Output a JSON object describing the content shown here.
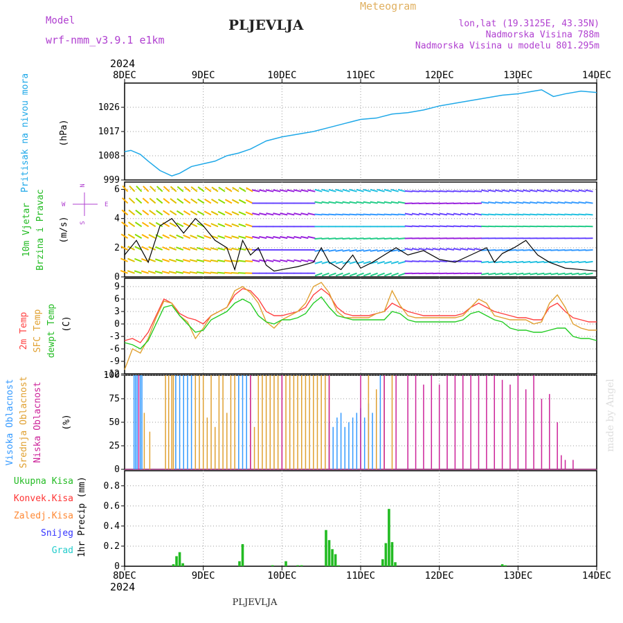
{
  "header": {
    "model_label": "Model",
    "model_name": "wrf-nmm_v3.9.1  e1km",
    "title": "PLJEVLJA",
    "meteogram": "Meteogram",
    "lonlat": "lon,lat (19.3125E, 43.35N)",
    "elevation": "Nadmorska Visina 788m",
    "model_elevation": "Nadmorska Visina u modelu 801.295m",
    "year_top": "2024",
    "year_bottom": "2024",
    "footer": "PLJEVLJA",
    "credit": "made by Angel"
  },
  "colors": {
    "pressure": "#1ea8e8",
    "temp2m": "#ff4040",
    "sfc_temp": "#e0a030",
    "dewpoint": "#22cc22",
    "high_cloud": "#3399ff",
    "mid_cloud": "#e0a030",
    "low_cloud": "#cc2299",
    "total_precip": "#22bb22",
    "conv_precip": "#ff3333",
    "frz_precip": "#ff8833",
    "snow": "#3333ff",
    "graupel": "#22cccc",
    "axis_label_purple": "#b040d0"
  },
  "chart_data": [
    {
      "type": "line",
      "name": "sea-level-pressure",
      "ylabel_main": "Pritisak na nivou mora",
      "ylabel_unit": "(hPa)",
      "x_ticks": [
        "8DEC",
        "9DEC",
        "10DEC",
        "11DEC",
        "12DEC",
        "13DEC",
        "14DEC"
      ],
      "ylim": [
        999,
        1035
      ],
      "yticks": [
        999,
        1008,
        1017,
        1026
      ],
      "x": [
        0,
        0.08,
        0.2,
        0.3,
        0.45,
        0.6,
        0.7,
        0.85,
        1.0,
        1.15,
        1.3,
        1.45,
        1.6,
        1.8,
        2.0,
        2.2,
        2.4,
        2.6,
        2.8,
        3.0,
        3.2,
        3.4,
        3.6,
        3.8,
        4.0,
        4.2,
        4.4,
        4.6,
        4.8,
        5.0,
        5.2,
        5.3,
        5.45,
        5.6,
        5.8,
        6.0
      ],
      "y": [
        1009.5,
        1010.0,
        1008.5,
        1006.0,
        1002.5,
        1000.5,
        1001.5,
        1004.0,
        1005.0,
        1006.0,
        1008.0,
        1009.0,
        1010.5,
        1013.5,
        1015.0,
        1016.0,
        1017.0,
        1018.5,
        1020.0,
        1021.5,
        1022.0,
        1023.5,
        1024.0,
        1025.0,
        1026.5,
        1027.5,
        1028.5,
        1029.5,
        1030.5,
        1031.0,
        1032.0,
        1032.5,
        1030.0,
        1031.0,
        1032.0,
        1031.5
      ]
    },
    {
      "type": "line",
      "name": "wind",
      "ylabel_main": "10m Vjetar",
      "ylabel_sub": "Brzina i Pravac",
      "ylabel_unit": "(m/s)",
      "compass": [
        "N",
        "W",
        "E",
        "S"
      ],
      "ylim": [
        0,
        6.5
      ],
      "yticks": [
        0,
        2,
        4,
        6
      ],
      "series": [
        {
          "name": "speed",
          "x": [
            0,
            0.15,
            0.3,
            0.45,
            0.6,
            0.75,
            0.9,
            1.0,
            1.15,
            1.3,
            1.4,
            1.5,
            1.6,
            1.7,
            1.8,
            1.9,
            2.0,
            2.2,
            2.4,
            2.5,
            2.6,
            2.75,
            2.9,
            3.0,
            3.15,
            3.3,
            3.45,
            3.6,
            3.8,
            4.0,
            4.2,
            4.4,
            4.6,
            4.7,
            4.8,
            4.95,
            5.1,
            5.25,
            5.4,
            5.6,
            5.8,
            6.0
          ],
          "y": [
            1.5,
            2.5,
            1.0,
            3.5,
            4.0,
            3.0,
            4.0,
            3.5,
            2.5,
            2.0,
            0.5,
            2.5,
            1.5,
            2.0,
            0.8,
            0.4,
            0.5,
            0.7,
            1.0,
            2.0,
            1.0,
            0.5,
            1.5,
            0.6,
            1.0,
            1.5,
            2.0,
            1.5,
            1.8,
            1.2,
            1.0,
            1.5,
            2.0,
            1.0,
            1.6,
            2.0,
            2.5,
            1.5,
            1.0,
            0.6,
            0.5,
            0.4
          ]
        }
      ]
    },
    {
      "type": "line",
      "name": "temperature",
      "ylabel_lines": [
        "2m Temp",
        "SFC Temp",
        "dewpt Temp"
      ],
      "ylabel_unit": "(C)",
      "ylim": [
        -12,
        11
      ],
      "yticks": [
        -12,
        -9,
        -6,
        -3,
        0,
        3,
        6,
        9
      ],
      "x": [
        0,
        0.1,
        0.2,
        0.3,
        0.4,
        0.5,
        0.6,
        0.7,
        0.8,
        0.9,
        1.0,
        1.1,
        1.2,
        1.3,
        1.4,
        1.5,
        1.6,
        1.7,
        1.8,
        1.9,
        2.0,
        2.1,
        2.2,
        2.3,
        2.4,
        2.5,
        2.6,
        2.7,
        2.8,
        2.9,
        3.0,
        3.1,
        3.2,
        3.3,
        3.4,
        3.5,
        3.6,
        3.7,
        3.8,
        3.9,
        4.0,
        4.1,
        4.2,
        4.3,
        4.4,
        4.5,
        4.6,
        4.7,
        4.8,
        4.9,
        5.0,
        5.1,
        5.2,
        5.3,
        5.4,
        5.5,
        5.6,
        5.7,
        5.8,
        5.9,
        6.0
      ],
      "series": [
        {
          "name": "2m Temp",
          "y": [
            -4.0,
            -3.5,
            -4.5,
            -2.0,
            2.0,
            6.0,
            5.0,
            2.5,
            1.5,
            1.0,
            0.0,
            2.0,
            3.0,
            4.0,
            7.0,
            8.5,
            8.0,
            6.0,
            3.0,
            2.0,
            2.0,
            2.5,
            3.0,
            4.0,
            7.0,
            8.5,
            7.0,
            4.0,
            2.5,
            2.0,
            2.0,
            2.0,
            2.5,
            3.0,
            5.0,
            4.0,
            3.0,
            2.5,
            2.0,
            2.0,
            2.0,
            2.0,
            2.0,
            2.5,
            4.0,
            5.0,
            4.0,
            3.0,
            2.5,
            2.0,
            1.5,
            1.5,
            1.0,
            1.0,
            4.0,
            5.0,
            3.0,
            1.5,
            1.0,
            0.5,
            0.5
          ]
        },
        {
          "name": "SFC Temp",
          "y": [
            -11.0,
            -6.0,
            -7.0,
            -3.5,
            1.5,
            5.5,
            5.0,
            2.0,
            0.5,
            -3.5,
            -1.0,
            2.0,
            3.0,
            4.0,
            8.0,
            9.0,
            7.5,
            5.0,
            0.5,
            -1.0,
            1.0,
            2.0,
            3.0,
            5.0,
            9.0,
            10.0,
            7.5,
            3.0,
            1.5,
            1.5,
            1.5,
            1.5,
            2.5,
            3.0,
            8.0,
            4.5,
            2.0,
            1.5,
            1.5,
            1.5,
            1.5,
            1.5,
            1.5,
            2.0,
            4.0,
            6.0,
            5.0,
            2.0,
            1.5,
            1.0,
            1.0,
            1.0,
            0.0,
            0.5,
            5.0,
            7.0,
            4.0,
            0.0,
            -1.0,
            -1.5,
            -1.5
          ]
        },
        {
          "name": "dewpt Temp",
          "y": [
            -4.5,
            -5.0,
            -6.0,
            -4.0,
            0.0,
            4.0,
            4.5,
            2.0,
            0.0,
            -2.0,
            -1.5,
            1.0,
            2.0,
            3.0,
            5.0,
            6.0,
            5.0,
            2.0,
            0.5,
            0.0,
            1.0,
            1.0,
            1.5,
            2.5,
            5.0,
            6.5,
            4.0,
            2.0,
            1.5,
            1.0,
            1.0,
            1.0,
            1.0,
            1.0,
            3.0,
            2.5,
            1.0,
            0.5,
            0.5,
            0.5,
            0.5,
            0.5,
            0.5,
            1.0,
            2.5,
            3.0,
            2.0,
            1.0,
            0.5,
            -1.0,
            -1.5,
            -1.5,
            -2.0,
            -2.0,
            -1.5,
            -1.0,
            -1.0,
            -3.0,
            -3.5,
            -3.5,
            -4.0
          ]
        }
      ]
    },
    {
      "type": "bar",
      "name": "cloud-cover",
      "ylabel_lines": [
        "Visoka Oblacnost",
        "Srednja Oblacnost",
        "Niska Oblacnost"
      ],
      "ylabel_unit": "(%)",
      "ylim": [
        0,
        100
      ],
      "yticks": [
        0,
        25,
        50,
        75,
        100
      ],
      "series": [
        {
          "name": "Visoka Oblacnost",
          "x": [
            0.12,
            0.14,
            0.16,
            0.2,
            0.22,
            0.65,
            0.7,
            0.75,
            0.8,
            0.85,
            1.45,
            1.5,
            1.55,
            2.6,
            2.65,
            2.7,
            2.75,
            2.8,
            2.85,
            2.9,
            2.95,
            3.0,
            3.05,
            3.1,
            3.15,
            3.2,
            3.25
          ],
          "y": [
            100,
            100,
            100,
            100,
            100,
            100,
            100,
            100,
            100,
            100,
            100,
            100,
            100,
            50,
            45,
            55,
            60,
            45,
            50,
            55,
            60,
            65,
            55,
            70,
            60,
            80,
            100
          ]
        },
        {
          "name": "Srednja Oblacnost",
          "x": [
            0.25,
            0.32,
            0.52,
            0.56,
            0.6,
            0.62,
            0.9,
            0.95,
            1.0,
            1.05,
            1.1,
            1.15,
            1.2,
            1.25,
            1.3,
            1.35,
            1.4,
            1.6,
            1.65,
            1.7,
            1.75,
            1.8,
            1.85,
            1.9,
            1.95,
            2.0,
            2.05,
            2.1,
            2.15,
            2.2,
            2.25,
            2.3,
            2.35,
            2.4,
            2.45,
            2.5,
            2.55,
            2.6,
            3.1,
            3.2,
            3.3,
            3.4
          ],
          "y": [
            60,
            40,
            100,
            100,
            100,
            100,
            100,
            100,
            100,
            55,
            100,
            45,
            100,
            100,
            60,
            100,
            100,
            100,
            45,
            100,
            100,
            100,
            100,
            100,
            100,
            100,
            100,
            100,
            100,
            100,
            100,
            100,
            100,
            100,
            100,
            100,
            100,
            100,
            100,
            85,
            100,
            100
          ]
        },
        {
          "name": "Niska Oblacnost",
          "x": [
            0.18,
            1.6,
            2.0,
            2.6,
            3.0,
            3.3,
            3.45,
            3.6,
            3.7,
            3.8,
            3.9,
            4.0,
            4.1,
            4.2,
            4.3,
            4.4,
            4.5,
            4.6,
            4.7,
            4.8,
            4.9,
            5.0,
            5.1,
            5.2,
            5.3,
            5.4,
            5.5,
            5.55,
            5.6,
            5.7
          ],
          "y": [
            100,
            100,
            100,
            100,
            100,
            100,
            100,
            100,
            100,
            90,
            100,
            90,
            100,
            100,
            100,
            100,
            100,
            100,
            100,
            95,
            90,
            100,
            85,
            100,
            75,
            80,
            50,
            15,
            10,
            10
          ]
        }
      ]
    },
    {
      "type": "bar",
      "name": "precipitation",
      "legend": [
        "Ukupna Kisa",
        "Konvek.Kisa",
        "Zaledj.Kisa",
        "Snijeg",
        "Grad"
      ],
      "ylabel_main": "1hr Precip",
      "ylabel_unit": "(mm)",
      "ylim": [
        0,
        0.95
      ],
      "yticks": [
        0,
        0.2,
        0.4,
        0.6,
        0.8
      ],
      "series": [
        {
          "name": "Ukupna Kisa",
          "x": [
            0.62,
            0.66,
            0.7,
            0.74,
            1.46,
            1.5,
            1.88,
            2.05,
            2.2,
            2.25,
            2.56,
            2.6,
            2.64,
            2.68,
            2.72,
            3.28,
            3.32,
            3.36,
            3.4,
            3.44,
            4.8,
            4.84
          ],
          "y": [
            0.02,
            0.1,
            0.14,
            0.03,
            0.05,
            0.22,
            0.01,
            0.05,
            0.01,
            0.01,
            0.36,
            0.26,
            0.17,
            0.12,
            0.01,
            0.07,
            0.23,
            0.57,
            0.24,
            0.04,
            0.02,
            0.01
          ]
        }
      ]
    }
  ]
}
